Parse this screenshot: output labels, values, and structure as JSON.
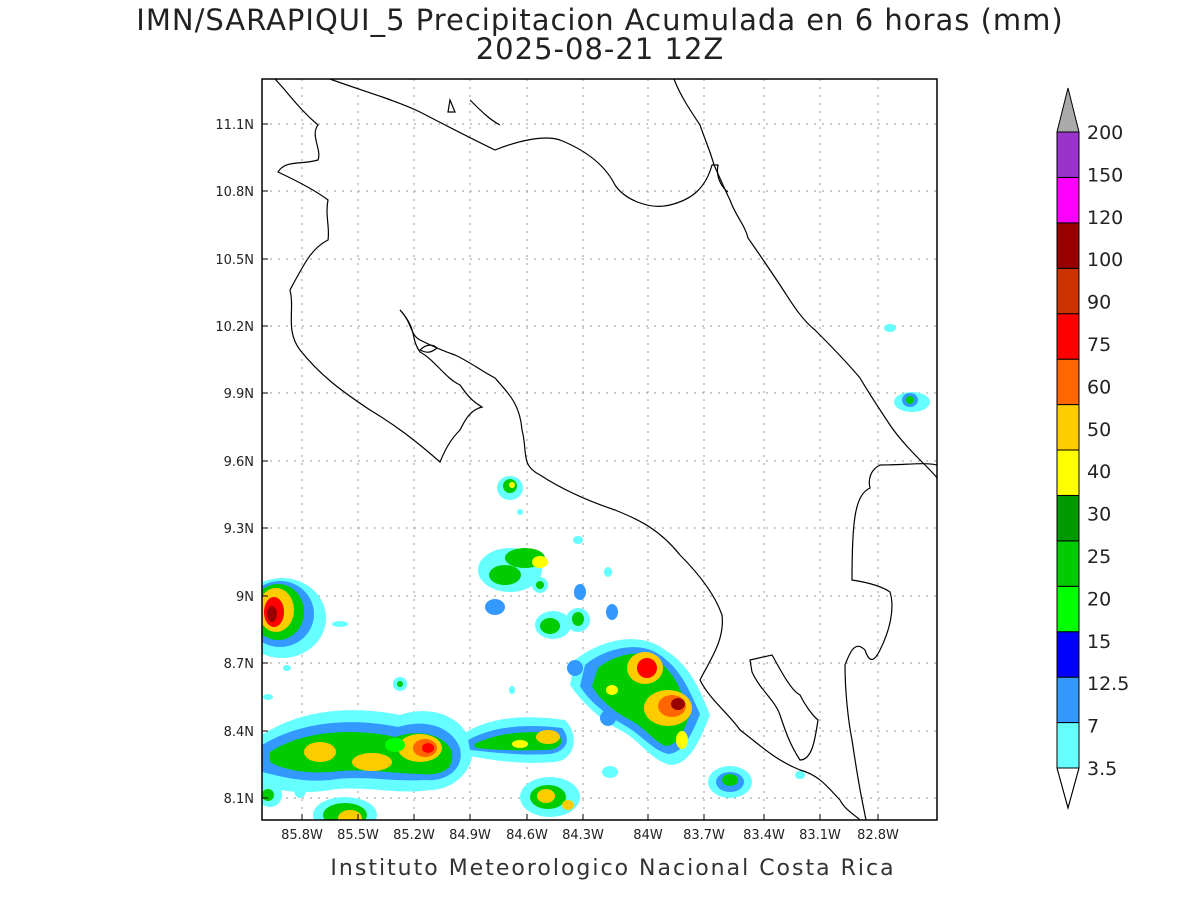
{
  "title": {
    "line1": "IMN/SARAPIQUI_5 Precipitacion Acumulada en 6 horas (mm)",
    "line2": "2025-08-21 12Z"
  },
  "map": {
    "lat_labels": [
      "11.1N",
      "10.8N",
      "10.5N",
      "10.2N",
      "9.9N",
      "9.6N",
      "9.3N",
      "9N",
      "8.7N",
      "8.4N",
      "8.1N"
    ],
    "lon_labels": [
      "85.8W",
      "85.5W",
      "85.2W",
      "84.9W",
      "84.6W",
      "84.3W",
      "84W",
      "83.7W",
      "83.4W",
      "83.1W",
      "82.8W"
    ],
    "grid": true
  },
  "colorbar": {
    "unit": "mm",
    "levels": [
      "3.5",
      "7",
      "12.5",
      "15",
      "20",
      "25",
      "30",
      "40",
      "50",
      "60",
      "75",
      "90",
      "100",
      "120",
      "150",
      "200"
    ],
    "colors": [
      "#66ffff",
      "#3399ff",
      "#0000ff",
      "#00ff00",
      "#00cc00",
      "#009900",
      "#ffff00",
      "#ffcc00",
      "#ff6600",
      "#ff0000",
      "#cc3300",
      "#990000",
      "#ff00ff",
      "#9933cc",
      "#f5f5f5",
      "#aaaaaa"
    ]
  },
  "footer": "Instituto Meteorologico Nacional Costa Rica"
}
